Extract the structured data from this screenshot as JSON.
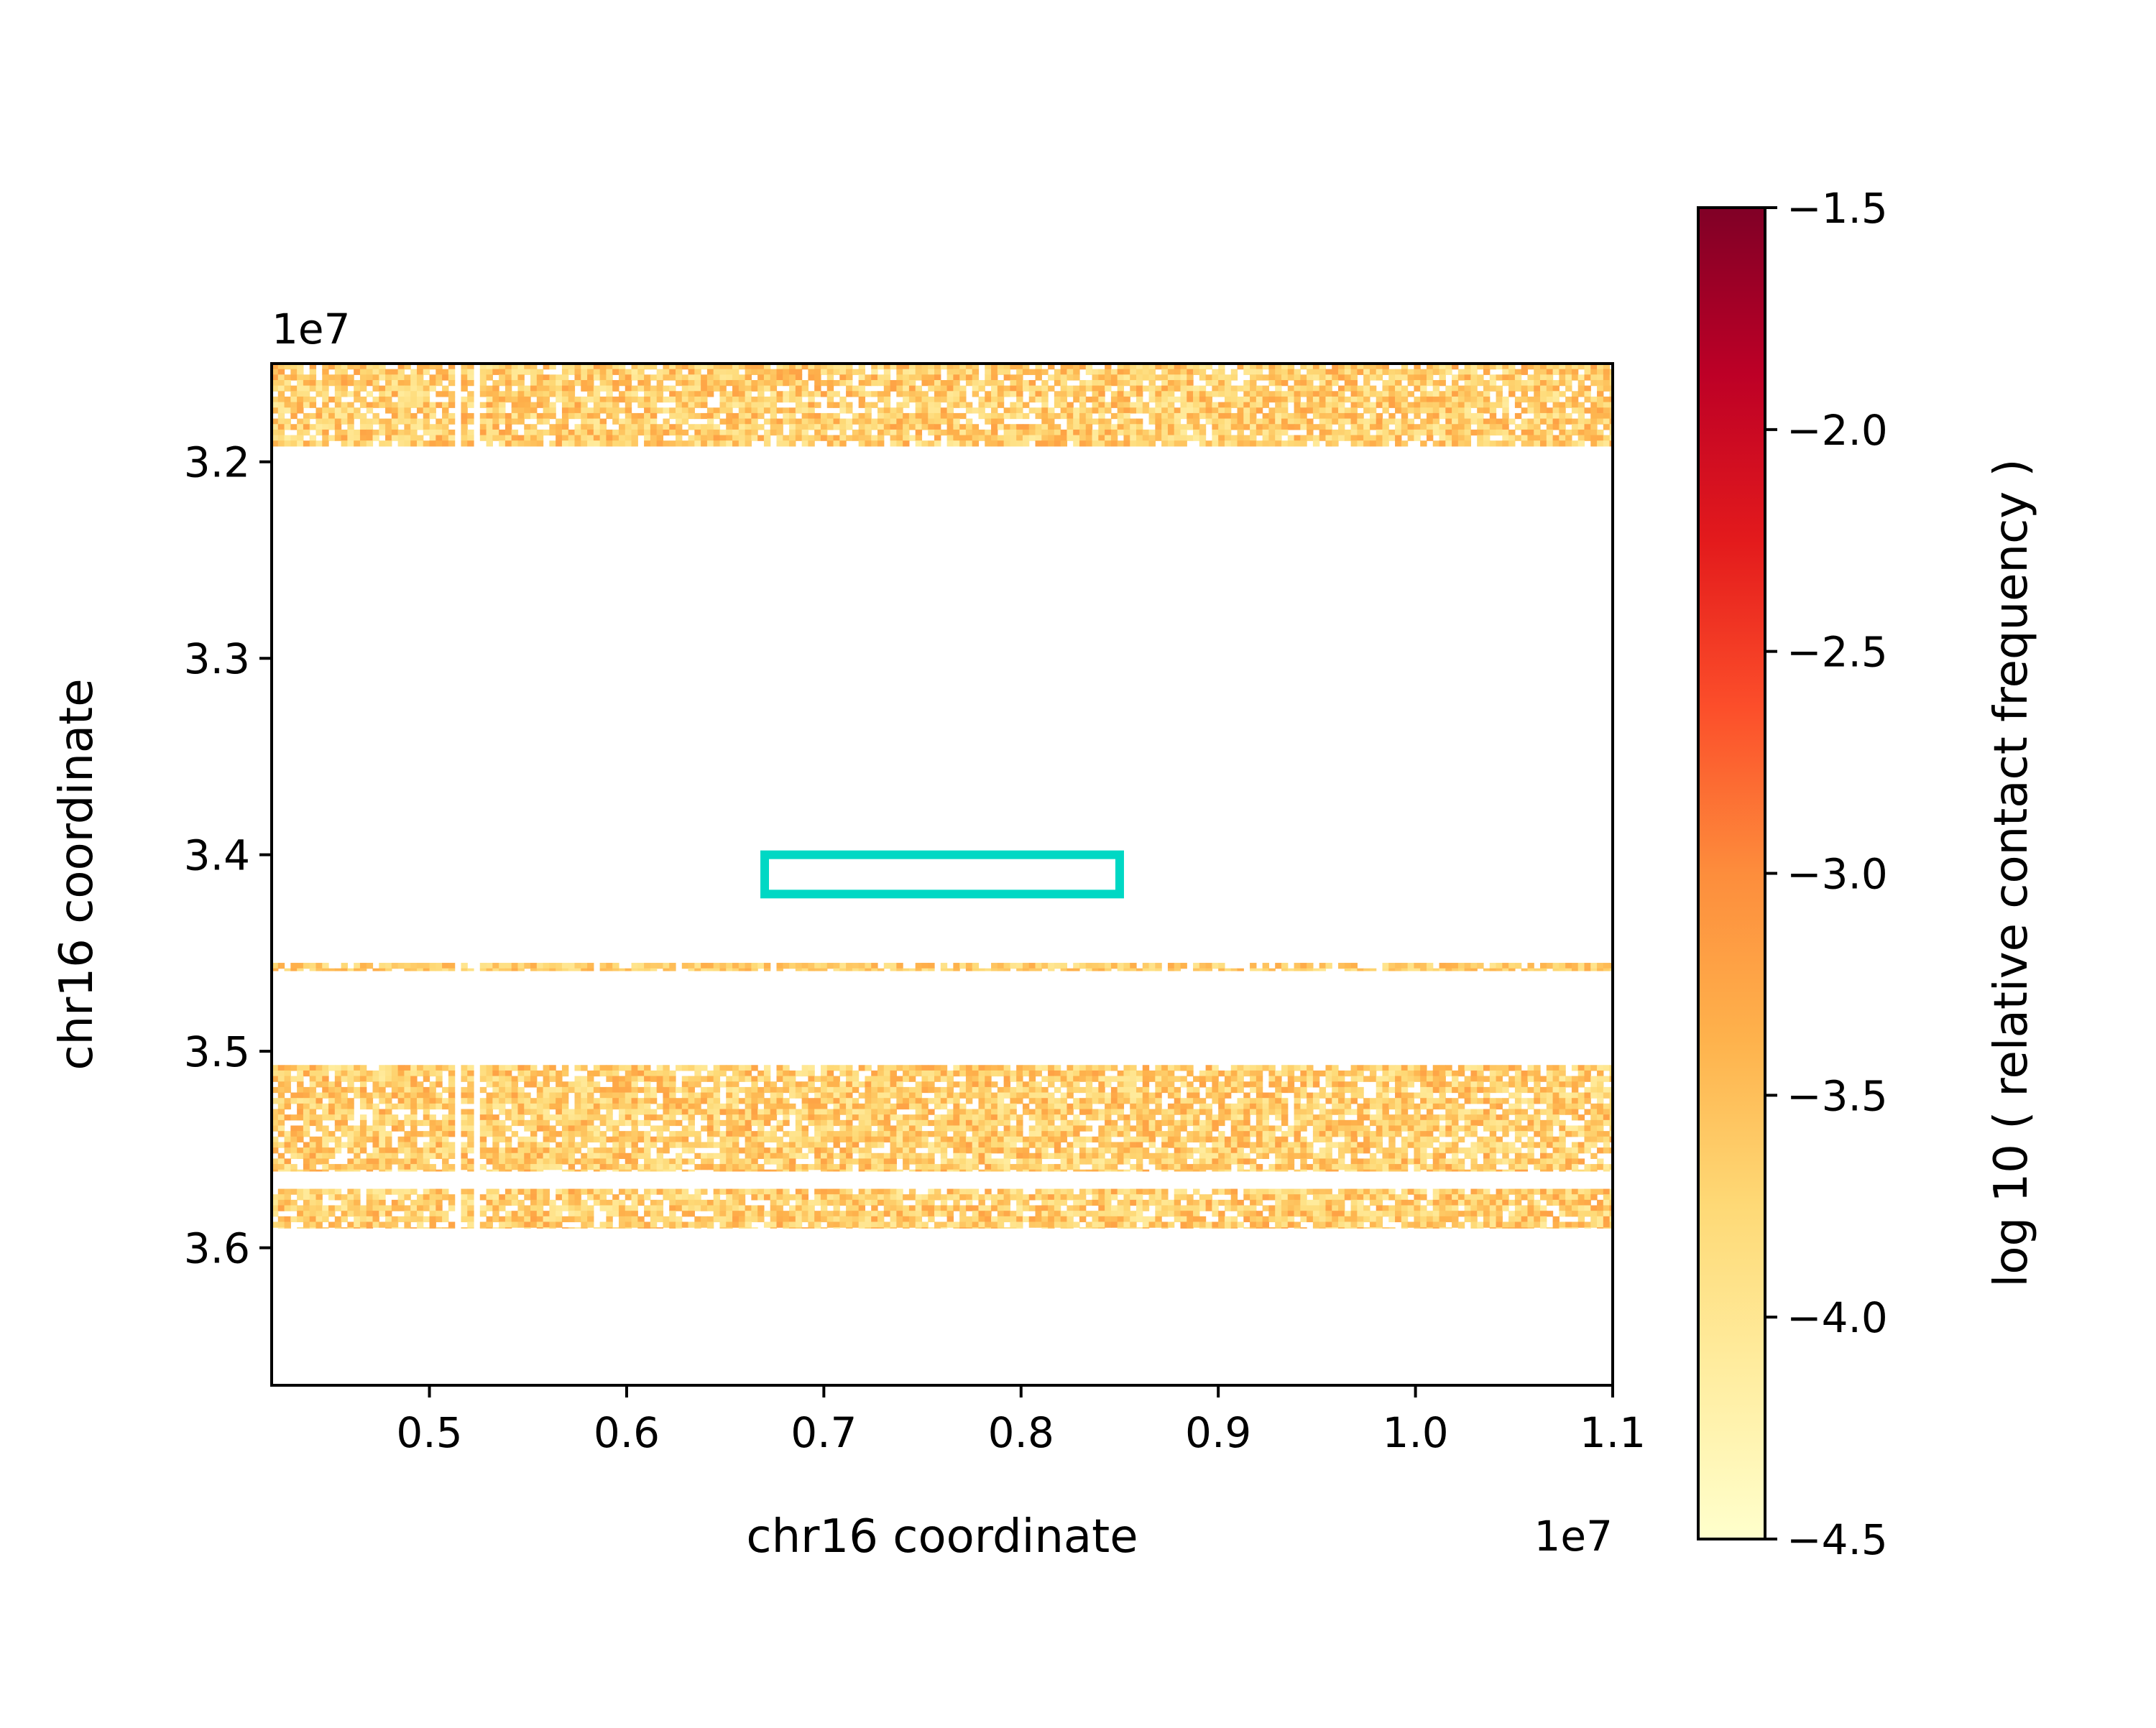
{
  "chart_data": {
    "type": "heatmap",
    "title": "",
    "xlabel": "chr16 coordinate",
    "ylabel": "chr16 coordinate",
    "x_offset_label": "1e7",
    "y_offset_label": "1e7",
    "xlim": [
      0.42,
      1.1
    ],
    "ylim": [
      3.15,
      3.67
    ],
    "y_inverted": true,
    "x_ticks": [
      0.5,
      0.6,
      0.7,
      0.8,
      0.9,
      1.0,
      1.1
    ],
    "x_tick_labels": [
      "0.5",
      "0.6",
      "0.7",
      "0.8",
      "0.9",
      "1.0",
      "1.1"
    ],
    "y_ticks": [
      3.2,
      3.3,
      3.4,
      3.5,
      3.6
    ],
    "y_tick_labels": [
      "3.2",
      "3.3",
      "3.4",
      "3.5",
      "3.6"
    ],
    "colorbar": {
      "label": "log 10 ( relative contact frequency )",
      "range": [
        -4.5,
        -1.5
      ],
      "ticks": [
        -1.5,
        -2.0,
        -2.5,
        -3.0,
        -3.5,
        -4.0,
        -4.5
      ],
      "tick_labels": [
        "−1.5",
        "−2.0",
        "−2.5",
        "−3.0",
        "−3.5",
        "−4.0",
        "−4.5"
      ],
      "colormap": "YlOrRd",
      "stops": [
        "#ffffcc",
        "#ffeda0",
        "#fed976",
        "#feb24c",
        "#fd8d3c",
        "#fc4e2a",
        "#e31a1c",
        "#bd0026",
        "#800026"
      ]
    },
    "bands": [
      {
        "y": [
          3.15,
          3.192
        ],
        "value_range": [
          -4.1,
          -3.2
        ]
      },
      {
        "y": [
          3.455,
          3.459
        ],
        "value_range": [
          -4.0,
          -3.3
        ]
      },
      {
        "y": [
          3.507,
          3.561
        ],
        "value_range": [
          -4.1,
          -3.2
        ]
      },
      {
        "y": [
          3.57,
          3.59
        ],
        "value_range": [
          -4.1,
          -3.2
        ]
      }
    ],
    "gap_columns_x": [
      0.515,
      0.524
    ],
    "highlight_box": {
      "x": [
        0.67,
        0.85
      ],
      "y": [
        3.4,
        3.42
      ],
      "color": "#00d8c4"
    }
  }
}
